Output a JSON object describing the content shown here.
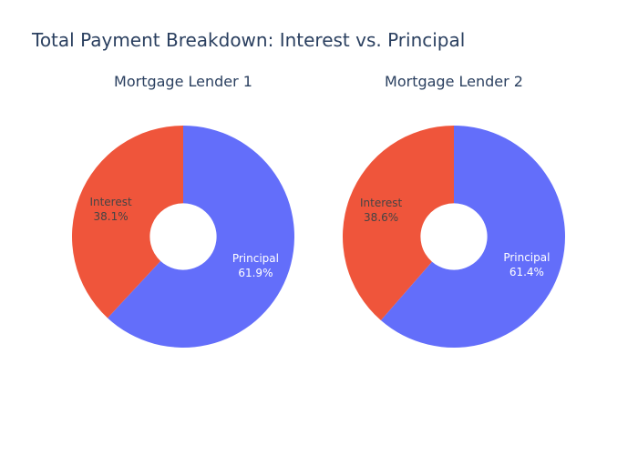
{
  "title": "Total Payment Breakdown: Interest vs. Principal",
  "chart_data": [
    {
      "type": "pie",
      "subtitle": "Mortgage Lender 1",
      "hole": 0.3,
      "slices": [
        {
          "label": "Principal",
          "percent": 61.9,
          "percent_text": "61.9%",
          "color": "#636efa",
          "text_color": "#ffffff"
        },
        {
          "label": "Interest",
          "percent": 38.1,
          "percent_text": "38.1%",
          "color": "#ef553b",
          "text_color": "#444444"
        }
      ]
    },
    {
      "type": "pie",
      "subtitle": "Mortgage Lender 2",
      "hole": 0.3,
      "slices": [
        {
          "label": "Principal",
          "percent": 61.4,
          "percent_text": "61.4%",
          "color": "#636efa",
          "text_color": "#ffffff"
        },
        {
          "label": "Interest",
          "percent": 38.6,
          "percent_text": "38.6%",
          "color": "#ef553b",
          "text_color": "#444444"
        }
      ]
    }
  ]
}
